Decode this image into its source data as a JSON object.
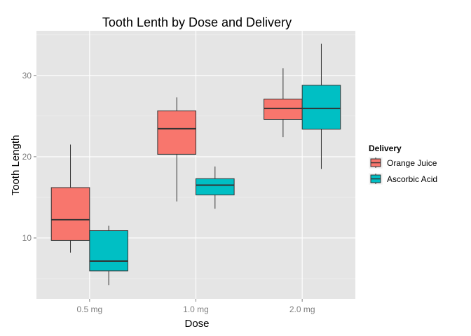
{
  "chart_data": {
    "type": "boxplot",
    "title": "Tooth Lenth by Dose and Delivery",
    "xlabel": "Dose",
    "ylabel": "Tooth Length",
    "categories": [
      "0.5 mg",
      "1.0 mg",
      "2.0 mg"
    ],
    "ylim": [
      2.5,
      35.5
    ],
    "yticks": [
      10,
      20,
      30
    ],
    "grid": true,
    "legend": {
      "title": "Delivery",
      "position": "right"
    },
    "series": [
      {
        "name": "Orange Juice",
        "color": "#F8766D",
        "boxes": [
          {
            "min": 8.2,
            "q1": 9.7,
            "median": 12.25,
            "q3": 16.2,
            "max": 21.5
          },
          {
            "min": 14.5,
            "q1": 20.3,
            "median": 23.45,
            "q3": 25.65,
            "max": 27.3
          },
          {
            "min": 22.4,
            "q1": 24.6,
            "median": 25.95,
            "q3": 27.1,
            "max": 30.9
          }
        ]
      },
      {
        "name": "Ascorbic Acid",
        "color": "#00BFC4",
        "boxes": [
          {
            "min": 4.2,
            "q1": 5.95,
            "median": 7.15,
            "q3": 10.9,
            "max": 11.5
          },
          {
            "min": 13.6,
            "q1": 15.3,
            "median": 16.5,
            "q3": 17.3,
            "max": 18.8
          },
          {
            "min": 18.5,
            "q1": 23.4,
            "median": 25.95,
            "q3": 28.8,
            "max": 33.9
          }
        ]
      }
    ]
  }
}
